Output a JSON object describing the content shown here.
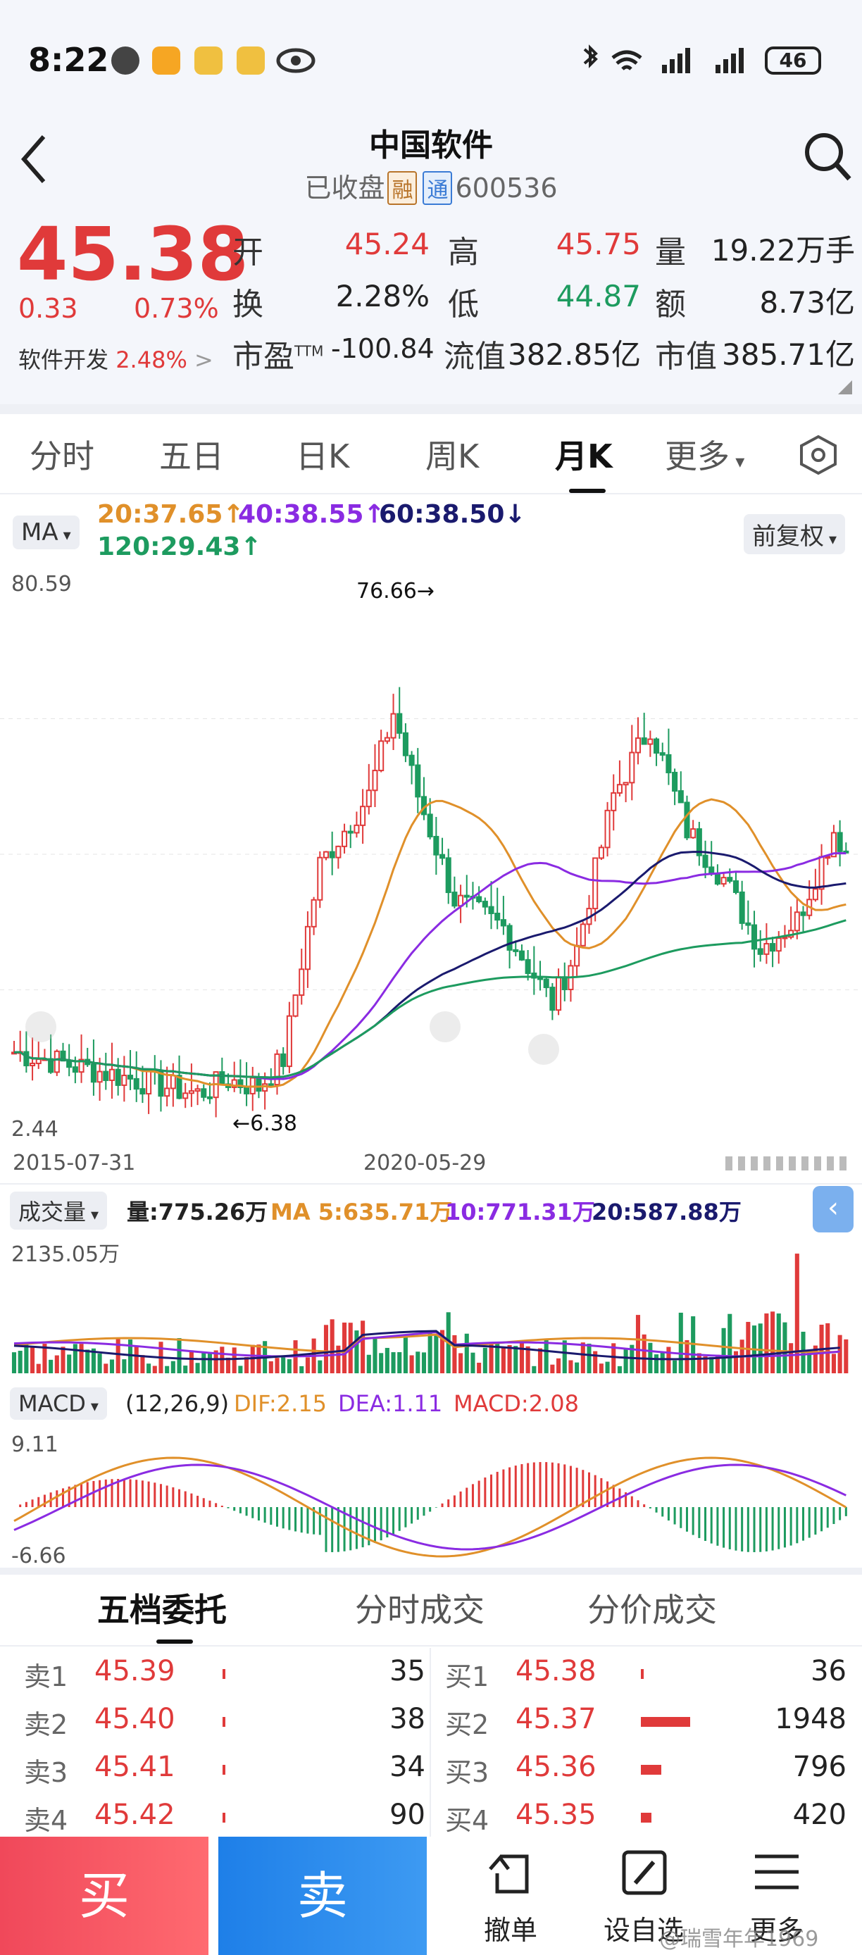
{
  "status": {
    "time": "8:22",
    "battery": "46"
  },
  "header": {
    "title": "中国软件",
    "state": "已收盘",
    "tag_rong": "融",
    "tag_tong": "通",
    "code": "600536"
  },
  "quote": {
    "price": "45.38",
    "change": "0.33",
    "change_pct": "0.73%",
    "sector": "软件开发",
    "sector_pct": "2.48%",
    "open_label": "开",
    "open": "45.24",
    "high_label": "高",
    "high": "45.75",
    "vol_label": "量",
    "vol": "19.22万手",
    "turn_label": "换",
    "turn": "2.28%",
    "low_label": "低",
    "low": "44.87",
    "amt_label": "额",
    "amt": "8.73亿",
    "pe_label": "市盈",
    "pe_sup": "TTM",
    "pe": "-100.84",
    "float_label": "流值",
    "float_cap": "382.85亿",
    "mcap_label": "市值",
    "mcap": "385.71亿"
  },
  "tabs": [
    "分时",
    "五日",
    "日K",
    "周K",
    "月K",
    "更多"
  ],
  "indicator": {
    "ma_button": "MA",
    "ma20": "20:37.65↑",
    "ma40": "40:38.55↑",
    "ma60": "60:38.50↓",
    "ma120": "120:29.43↑",
    "adjust": "前复权"
  },
  "kline": {
    "ymax": "80.59",
    "ymin": "2.44",
    "high_mark": "76.66→",
    "low_mark": "←6.38",
    "date_left": "2015-07-31",
    "date_mid": "2020-05-29"
  },
  "volume": {
    "button": "成交量",
    "vol": "量:775.26万",
    "ma5": "MA 5:635.71万",
    "ma10": "10:771.31万",
    "ma20": "20:587.88万",
    "ymax": "2135.05万"
  },
  "macd": {
    "button": "MACD",
    "params": "(12,26,9)",
    "dif": "DIF:2.15",
    "dea": "DEA:1.11",
    "macd": "MACD:2.08",
    "ymax": "9.11",
    "ymin": "-6.66"
  },
  "book_tabs": [
    "五档委托",
    "分时成交",
    "分价成交"
  ],
  "sell": [
    {
      "label": "卖1",
      "price": "45.39",
      "qty": "35"
    },
    {
      "label": "卖2",
      "price": "45.40",
      "qty": "38"
    },
    {
      "label": "卖3",
      "price": "45.41",
      "qty": "34"
    },
    {
      "label": "卖4",
      "price": "45.42",
      "qty": "90"
    }
  ],
  "buy": [
    {
      "label": "买1",
      "price": "45.38",
      "qty": "36"
    },
    {
      "label": "买2",
      "price": "45.37",
      "qty": "1948"
    },
    {
      "label": "买3",
      "price": "45.36",
      "qty": "796"
    },
    {
      "label": "买4",
      "price": "45.35",
      "qty": "420"
    }
  ],
  "actions": {
    "buy": "买",
    "sell": "卖",
    "cancel": "撤单",
    "set": "设自选",
    "more": "更多"
  },
  "watermark": "@瑞雪年年1969",
  "colors": {
    "up": "#e03a3a",
    "down": "#1d9b5f",
    "ma20": "#e0902a",
    "ma40": "#8a2be2",
    "ma60": "#1a1a6e",
    "ma120": "#1d9b5f"
  }
}
